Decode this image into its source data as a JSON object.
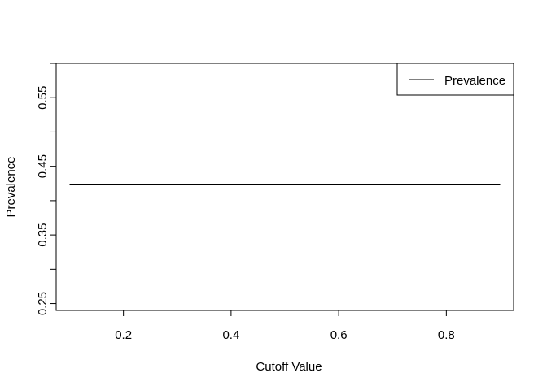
{
  "chart_data": {
    "type": "line",
    "title": "",
    "xlabel": "Cutoff Value",
    "ylabel": "Prevalence",
    "xlim": [
      0.075,
      0.925
    ],
    "ylim": [
      0.24,
      0.6
    ],
    "x_ticks": [
      0.2,
      0.4,
      0.6,
      0.8
    ],
    "x_tick_labels": [
      "0.2",
      "0.4",
      "0.6",
      "0.8"
    ],
    "y_ticks": [
      0.25,
      0.3,
      0.35,
      0.4,
      0.45,
      0.5,
      0.55,
      0.6
    ],
    "y_tick_labels": [
      "0.25",
      "",
      "0.35",
      "",
      "0.45",
      "",
      "0.55",
      ""
    ],
    "grid": false,
    "legend_position": "top-right",
    "legend": [
      "Prevalence"
    ],
    "series": [
      {
        "name": "Prevalence",
        "color": "#000000",
        "x": [
          0.1,
          0.9
        ],
        "y": [
          0.423,
          0.423
        ]
      }
    ]
  }
}
